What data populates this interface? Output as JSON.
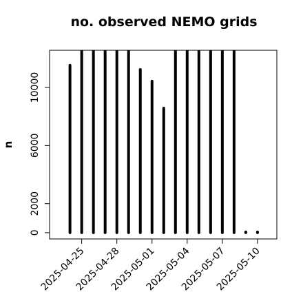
{
  "chart_data": {
    "type": "bar",
    "title": "no. observed NEMO grids",
    "y_label": "n",
    "x": [
      "2025-04-24",
      "2025-04-25",
      "2025-04-26",
      "2025-04-27",
      "2025-04-28",
      "2025-04-29",
      "2025-04-30",
      "2025-05-01",
      "2025-05-02",
      "2025-05-03",
      "2025-05-04",
      "2025-05-05",
      "2025-05-06",
      "2025-05-07",
      "2025-05-08",
      "2025-05-09",
      "2025-05-10"
    ],
    "values": [
      11520,
      12560,
      12560,
      12560,
      12560,
      12560,
      11230,
      10430,
      8580,
      12560,
      12560,
      12560,
      12560,
      12560,
      12560,
      50,
      50
    ],
    "color": "#000000",
    "xlim": [
      "2025-04-22T06:14Z",
      "2025-05-11T15:36Z"
    ],
    "xticks": [
      "2025-04-25",
      "2025-04-28",
      "2025-05-01",
      "2025-05-04",
      "2025-05-07",
      "2025-05-10"
    ],
    "ylim": [
      -430,
      12560
    ],
    "yticks": [
      0,
      2000,
      6000,
      10000
    ],
    "grid": false
  }
}
